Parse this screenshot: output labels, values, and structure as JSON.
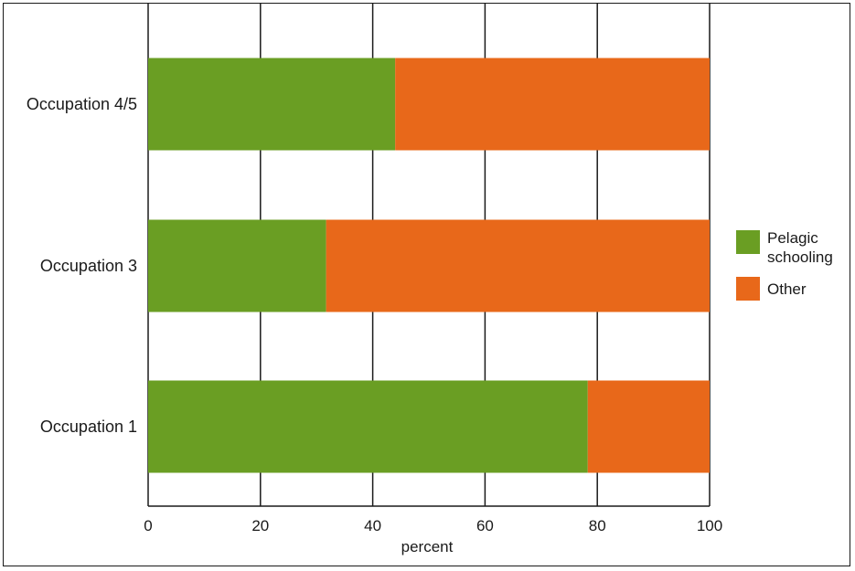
{
  "chart_data": {
    "type": "bar",
    "orientation": "horizontal",
    "stacked": true,
    "categories": [
      "Occupation 4/5",
      "Occupation 3",
      "Occupation 1"
    ],
    "series": [
      {
        "name": "Pelagic schooling",
        "values": [
          44,
          31.7,
          78.3
        ],
        "color": "#6a9e23"
      },
      {
        "name": "Other",
        "values": [
          56,
          68.3,
          21.7
        ],
        "color": "#e8681a"
      }
    ],
    "xlabel": "percent",
    "ylabel": "",
    "title": "",
    "xlim": [
      0,
      100
    ],
    "xticks": [
      0,
      20,
      40,
      60,
      80,
      100
    ],
    "grid": "vertical",
    "legend": {
      "position": "right",
      "entries": [
        {
          "lines": [
            "Pelagic",
            "schooling"
          ],
          "color": "#6a9e23"
        },
        {
          "lines": [
            "Other"
          ],
          "color": "#e8681a"
        }
      ]
    }
  }
}
